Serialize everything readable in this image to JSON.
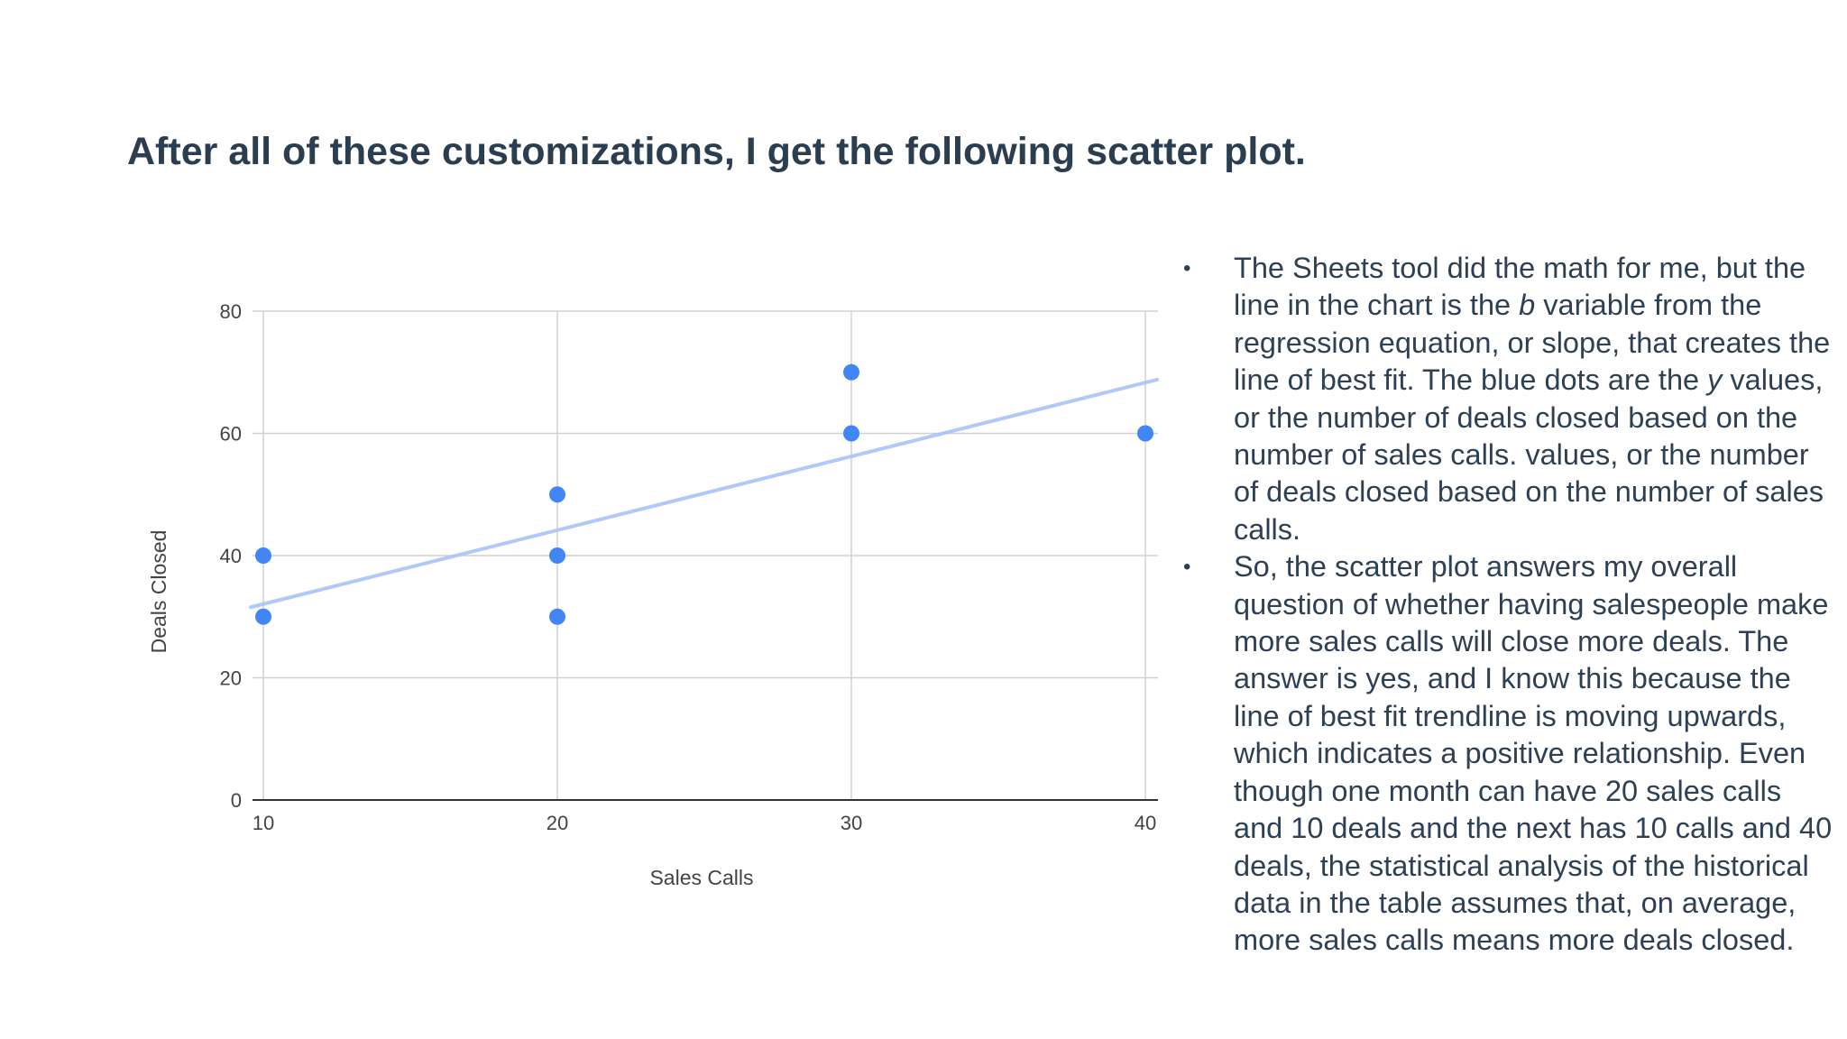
{
  "slide": {
    "title": "After all of these customizations, I get the following scatter plot."
  },
  "bullets": [
    {
      "parts": [
        {
          "text": "The Sheets tool did the math for me, but the line in the chart is the ",
          "italic": false
        },
        {
          "text": "b",
          "italic": true
        },
        {
          "text": " variable from the regression equation, or slope, that creates the line of best fit. The blue dots are the ",
          "italic": false
        },
        {
          "text": "y",
          "italic": true
        },
        {
          "text": " values, or the number of deals closed based on the number of sales calls. values, or the number of deals closed based on the number of sales calls.",
          "italic": false
        }
      ]
    },
    {
      "parts": [
        {
          "text": "So, the scatter plot answers my overall question of whether having salespeople make more sales calls will close more deals. The answer is yes, and I know this because the line of best fit trendline is moving upwards, which indicates a positive relationship. Even though one month can have 20 sales calls and 10 deals and the next has 10 calls and 40 deals, the statistical analysis of the historical data in the table assumes that, on average, more sales calls means more deals closed.",
          "italic": false
        }
      ]
    }
  ],
  "chart_data": {
    "type": "scatter",
    "xlabel": "Sales Calls",
    "ylabel": "Deals Closed",
    "xlim": [
      10,
      40
    ],
    "ylim": [
      0,
      80
    ],
    "x_ticks": [
      "10",
      "20",
      "30",
      "40"
    ],
    "y_ticks": [
      "0",
      "20",
      "40",
      "60",
      "80"
    ],
    "x_tick_values": [
      10,
      20,
      30,
      40
    ],
    "y_tick_values": [
      0,
      20,
      40,
      60,
      80
    ],
    "grid": true,
    "points": [
      {
        "x": 10,
        "y": 40
      },
      {
        "x": 10,
        "y": 30
      },
      {
        "x": 20,
        "y": 50
      },
      {
        "x": 20,
        "y": 40
      },
      {
        "x": 20,
        "y": 30
      },
      {
        "x": 30,
        "y": 70
      },
      {
        "x": 30,
        "y": 60
      },
      {
        "x": 40,
        "y": 60
      }
    ],
    "trendline": {
      "x": [
        10,
        40.4
      ],
      "y": [
        31.9,
        68.8
      ]
    },
    "colors": {
      "points": "#4285f4",
      "trendline": "#a9c4f5",
      "grid": "#d0d0d0",
      "axis": "#333333",
      "text": "#444444"
    }
  }
}
